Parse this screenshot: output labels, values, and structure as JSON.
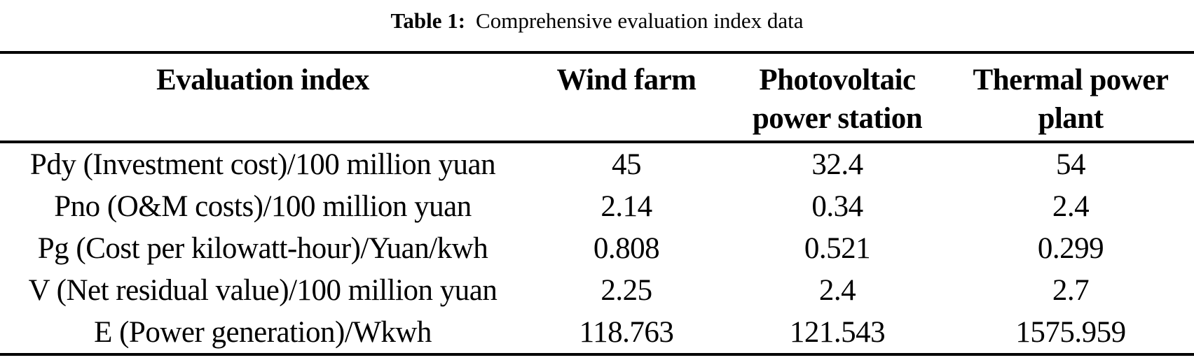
{
  "caption": {
    "prefix": "Table 1:",
    "text": "Comprehensive evaluation index data"
  },
  "table": {
    "headers": [
      "Evaluation index",
      "Wind farm",
      "Photovoltaic power station",
      "Thermal power plant"
    ],
    "rows": [
      {
        "label": "Pdy (Investment cost)/100 million yuan",
        "values": [
          "45",
          "32.4",
          "54"
        ]
      },
      {
        "label": "Pno (O&M costs)/100 million yuan",
        "values": [
          "2.14",
          "0.34",
          "2.4"
        ]
      },
      {
        "label": "Pg (Cost per kilowatt-hour)/Yuan/kwh",
        "values": [
          "0.808",
          "0.521",
          "0.299"
        ]
      },
      {
        "label": "V (Net residual value)/100 million yuan",
        "values": [
          "2.25",
          "2.4",
          "2.7"
        ]
      },
      {
        "label": "E (Power generation)/Wkwh",
        "values": [
          "118.763",
          "121.543",
          "1575.959"
        ]
      }
    ]
  },
  "colors": {
    "text": "#000000",
    "background": "#ffffff",
    "rule": "#000000"
  }
}
